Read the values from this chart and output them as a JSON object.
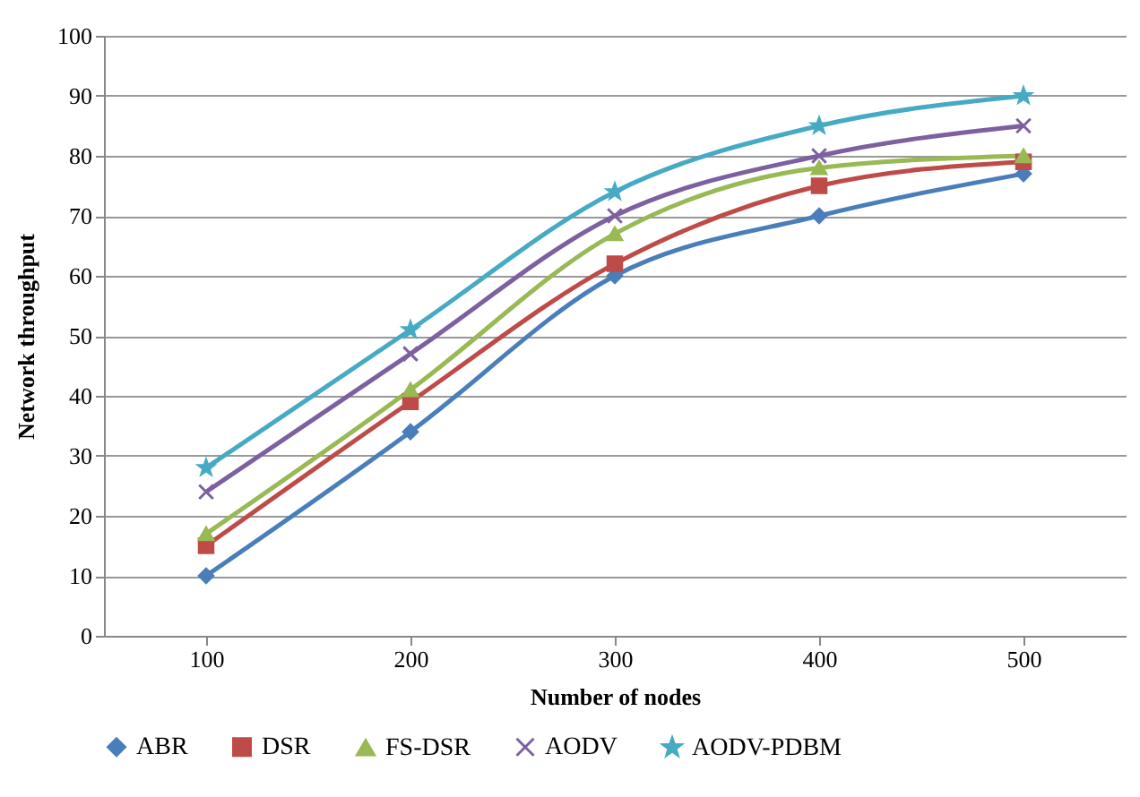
{
  "chart_data": {
    "type": "line",
    "xlabel": "Number of nodes",
    "ylabel": "Network throughput",
    "categories": [
      "100",
      "200",
      "300",
      "400",
      "500"
    ],
    "series": [
      {
        "name": "ABR",
        "color": "#4a7ebb",
        "marker": "diamond",
        "values": [
          10,
          34,
          60,
          70,
          77
        ]
      },
      {
        "name": "DSR",
        "color": "#be4b48",
        "marker": "square",
        "values": [
          15,
          39,
          62,
          75,
          79
        ]
      },
      {
        "name": "FS-DSR",
        "color": "#98b954",
        "marker": "triangle",
        "values": [
          17,
          41,
          67,
          78,
          80
        ]
      },
      {
        "name": "AODV",
        "color": "#7d60a0",
        "marker": "cross",
        "values": [
          24,
          47,
          70,
          80,
          85
        ]
      },
      {
        "name": "AODV-PDBM",
        "color": "#46aac5",
        "marker": "star",
        "values": [
          28,
          51,
          74,
          85,
          90
        ]
      }
    ],
    "ylim": [
      0,
      100
    ],
    "yticks": [
      0,
      10,
      20,
      30,
      40,
      50,
      60,
      70,
      80,
      90,
      100
    ],
    "grid": "y",
    "legend": "bottom"
  }
}
